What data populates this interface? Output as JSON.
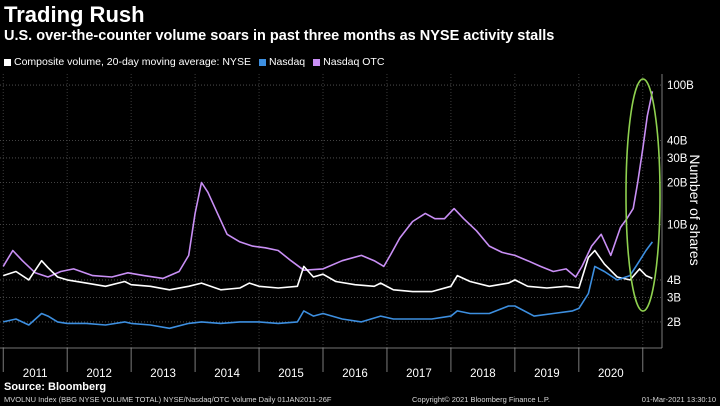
{
  "title": "Trading Rush",
  "subtitle": "U.S. over-the-counter volume soars in past three months as NYSE activity stalls",
  "legend": [
    {
      "label": "Composite volume, 20-day moving average: NYSE",
      "color": "#ffffff"
    },
    {
      "label": "Nasdaq",
      "color": "#3d8fe0"
    },
    {
      "label": "Nasdaq OTC",
      "color": "#c98ff5"
    }
  ],
  "source": "Source: Bloomberg",
  "footer_left": "MVOLNU Index (BBG NYSE VOLUME TOTAL) NYSE/Nasdaq/OTC Volume  Daily 01JAN2011-26F",
  "footer_center": "Copyright© 2021 Bloomberg Finance L.P.",
  "footer_right": "01-Mar-2021 13:30:10",
  "chart_data": {
    "type": "line",
    "ylabel": "Number of shares",
    "yscale": "log",
    "ylim": [
      1.3,
      120
    ],
    "xlim": [
      2010.95,
      2021.3
    ],
    "y_ticks": [
      {
        "value": 2,
        "label": "2B"
      },
      {
        "value": 3,
        "label": "3B"
      },
      {
        "value": 4,
        "label": "4B"
      },
      {
        "value": 10,
        "label": "10B"
      },
      {
        "value": 20,
        "label": "20B"
      },
      {
        "value": 30,
        "label": "30B"
      },
      {
        "value": 40,
        "label": "40B"
      },
      {
        "value": 100,
        "label": "100B"
      }
    ],
    "x_ticks": [
      "2011",
      "2012",
      "2013",
      "2014",
      "2015",
      "2016",
      "2017",
      "2018",
      "2019",
      "2020"
    ],
    "grid": true,
    "annotation": "green ellipse around late-2020 to 2021 surge",
    "series": [
      {
        "name": "Composite volume, 20-day moving average: NYSE",
        "color": "#ffffff",
        "x": [
          2011.0,
          2011.2,
          2011.4,
          2011.6,
          2011.7,
          2011.85,
          2012.0,
          2012.3,
          2012.6,
          2012.9,
          2013.0,
          2013.3,
          2013.6,
          2013.9,
          2014.1,
          2014.4,
          2014.7,
          2014.85,
          2015.0,
          2015.3,
          2015.6,
          2015.7,
          2015.85,
          2016.0,
          2016.2,
          2016.5,
          2016.8,
          2016.9,
          2017.1,
          2017.4,
          2017.7,
          2018.0,
          2018.1,
          2018.3,
          2018.6,
          2018.9,
          2019.0,
          2019.2,
          2019.5,
          2019.8,
          2020.0,
          2020.15,
          2020.25,
          2020.4,
          2020.6,
          2020.8,
          2020.95,
          2021.05,
          2021.15
        ],
        "values": [
          4.3,
          4.6,
          4.0,
          5.5,
          4.9,
          4.2,
          4.0,
          3.8,
          3.6,
          3.9,
          3.7,
          3.6,
          3.4,
          3.6,
          3.8,
          3.4,
          3.5,
          3.8,
          3.6,
          3.5,
          3.6,
          5.0,
          4.2,
          4.4,
          3.9,
          3.7,
          3.6,
          3.8,
          3.4,
          3.3,
          3.3,
          3.6,
          4.3,
          3.9,
          3.6,
          3.8,
          4.0,
          3.6,
          3.5,
          3.6,
          3.5,
          5.8,
          6.5,
          5.2,
          4.2,
          4.0,
          4.8,
          4.3,
          4.1
        ]
      },
      {
        "name": "Nasdaq",
        "color": "#3d8fe0",
        "x": [
          2011.0,
          2011.2,
          2011.4,
          2011.6,
          2011.7,
          2011.85,
          2012.0,
          2012.3,
          2012.6,
          2012.9,
          2013.0,
          2013.3,
          2013.6,
          2013.9,
          2014.1,
          2014.4,
          2014.7,
          2015.0,
          2015.3,
          2015.6,
          2015.7,
          2015.85,
          2016.0,
          2016.3,
          2016.6,
          2016.9,
          2017.1,
          2017.4,
          2017.7,
          2018.0,
          2018.1,
          2018.3,
          2018.6,
          2018.9,
          2019.0,
          2019.3,
          2019.6,
          2019.9,
          2020.0,
          2020.15,
          2020.25,
          2020.4,
          2020.6,
          2020.8,
          2020.95,
          2021.05,
          2021.15
        ],
        "values": [
          2.0,
          2.1,
          1.9,
          2.3,
          2.2,
          2.0,
          1.95,
          1.95,
          1.9,
          2.0,
          1.95,
          1.9,
          1.8,
          1.95,
          2.0,
          1.95,
          2.0,
          2.0,
          1.95,
          2.0,
          2.4,
          2.2,
          2.3,
          2.1,
          2.0,
          2.2,
          2.1,
          2.1,
          2.1,
          2.2,
          2.4,
          2.3,
          2.3,
          2.6,
          2.6,
          2.2,
          2.3,
          2.4,
          2.5,
          3.2,
          5.0,
          4.6,
          4.0,
          4.3,
          5.5,
          6.5,
          7.5
        ]
      },
      {
        "name": "Nasdaq OTC",
        "color": "#c98ff5",
        "x": [
          2011.0,
          2011.15,
          2011.3,
          2011.5,
          2011.7,
          2011.9,
          2012.1,
          2012.4,
          2012.7,
          2012.95,
          2013.2,
          2013.5,
          2013.75,
          2013.9,
          2014.0,
          2014.1,
          2014.2,
          2014.35,
          2014.5,
          2014.7,
          2014.9,
          2015.1,
          2015.3,
          2015.5,
          2015.7,
          2016.0,
          2016.3,
          2016.6,
          2016.8,
          2016.95,
          2017.05,
          2017.2,
          2017.4,
          2017.6,
          2017.75,
          2017.9,
          2018.05,
          2018.2,
          2018.4,
          2018.6,
          2018.8,
          2019.0,
          2019.2,
          2019.4,
          2019.6,
          2019.8,
          2019.95,
          2020.05,
          2020.2,
          2020.35,
          2020.5,
          2020.65,
          2020.75,
          2020.85,
          2020.92,
          2021.0,
          2021.07,
          2021.15
        ],
        "values": [
          5.0,
          6.5,
          5.5,
          4.5,
          4.2,
          4.6,
          4.8,
          4.3,
          4.2,
          4.5,
          4.3,
          4.1,
          4.6,
          6.0,
          12.0,
          20.0,
          17.0,
          12.0,
          8.5,
          7.5,
          7.0,
          6.8,
          6.5,
          5.5,
          4.7,
          4.8,
          5.5,
          6.0,
          5.5,
          5.0,
          6.0,
          8.0,
          10.5,
          12.0,
          11.0,
          11.0,
          13.0,
          11.0,
          9.0,
          7.0,
          6.3,
          6.0,
          5.5,
          5.0,
          4.6,
          4.8,
          4.2,
          5.0,
          7.0,
          8.5,
          6.0,
          9.5,
          11.0,
          13.0,
          20.0,
          35.0,
          60.0,
          90.0
        ]
      }
    ]
  }
}
